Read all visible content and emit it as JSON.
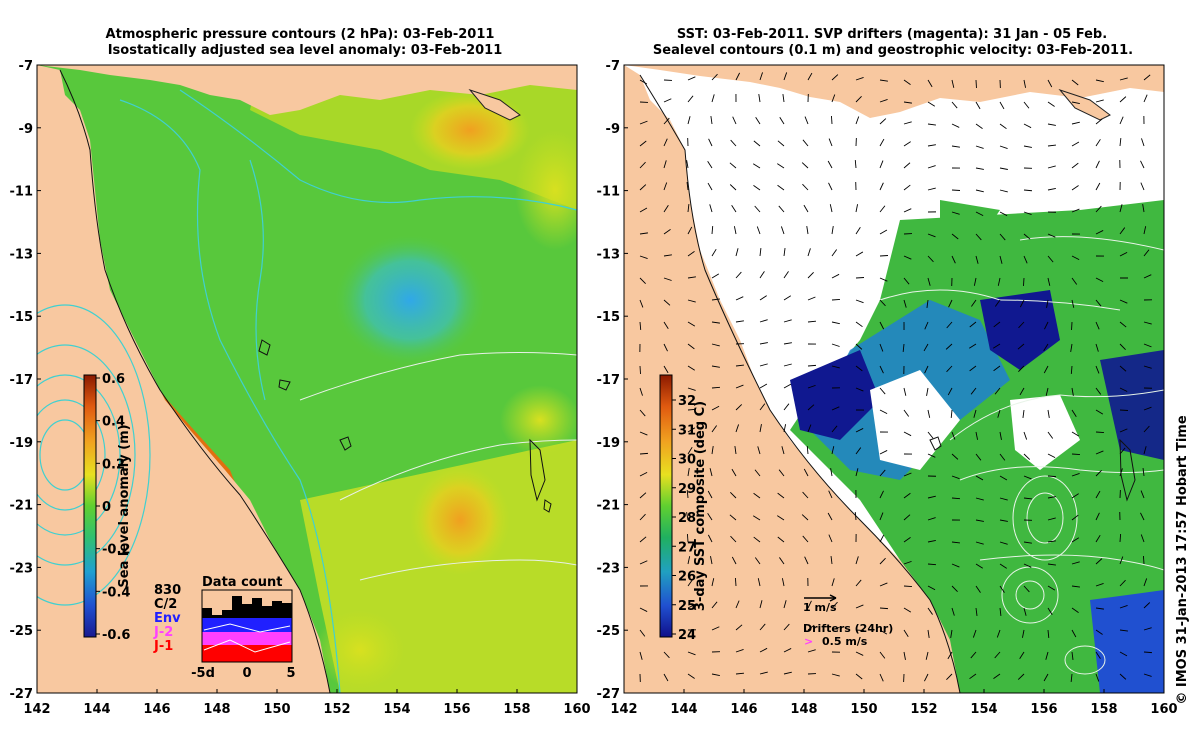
{
  "left_map": {
    "title_line1": "Atmospheric pressure contours (2 hPa): 03-Feb-2011",
    "title_line2": "Isostatically adjusted sea level anomaly: 03-Feb-2011",
    "x_ticks": [
      "142",
      "144",
      "146",
      "148",
      "150",
      "152",
      "154",
      "156",
      "158",
      "160"
    ],
    "y_ticks": [
      "-7",
      "-9",
      "-11",
      "-13",
      "-15",
      "-17",
      "-19",
      "-21",
      "-23",
      "-25",
      "-27"
    ],
    "colorbar": {
      "label": "Sea level anomaly (m)",
      "ticks": [
        "0.6",
        "0.4",
        "0.2",
        "0",
        "-0.2",
        "-0.4",
        "-0.6"
      ],
      "colors": [
        "#8b1a00",
        "#e05a10",
        "#f0a020",
        "#e8e020",
        "#60d030",
        "#30c070",
        "#20a0d0",
        "#2050d0",
        "#1a1a90"
      ]
    },
    "data_count": {
      "title": "Data count",
      "total": "830",
      "legend": [
        "C/2",
        "Env",
        "J-2",
        "J-1"
      ],
      "legend_colors": [
        "#000000",
        "#2020ff",
        "#ff40ff",
        "#ff0000"
      ],
      "x_ticks": [
        "-5d",
        "0",
        "5"
      ]
    }
  },
  "right_map": {
    "title_line1": "SST: 03-Feb-2011. SVP drifters (magenta): 31 Jan - 05 Feb.",
    "title_line2": "Sealevel contours (0.1 m) and geostrophic velocity: 03-Feb-2011.",
    "x_ticks": [
      "142",
      "144",
      "146",
      "148",
      "150",
      "152",
      "154",
      "156",
      "158",
      "160"
    ],
    "y_ticks": [
      "-7",
      "-9",
      "-11",
      "-13",
      "-15",
      "-17",
      "-19",
      "-21",
      "-23",
      "-25",
      "-27"
    ],
    "colorbar": {
      "label": "3-day SST composite (deg C)",
      "ticks": [
        "32",
        "31",
        "30",
        "29",
        "28",
        "27",
        "26",
        "25",
        "24"
      ],
      "colors": [
        "#8b1a00",
        "#e05a10",
        "#f0a020",
        "#e8e020",
        "#60d030",
        "#20b060",
        "#20a0c0",
        "#2050d0",
        "#10108a"
      ]
    },
    "velocity_scale": "1 m/s",
    "drifter_title": "Drifters (24hr)",
    "drifter_scale": "0.5 m/s"
  },
  "credit": "© IMOS 31-Jan-2013 17:57 Hobart Time",
  "colors": {
    "land": "#f8c8a0",
    "sea_green": "#58c83c",
    "sea_yellow": "#c8e020",
    "sea_cyan": "#40b8d8",
    "sst_white": "#ffffff",
    "sst_dark_blue": "#101890",
    "pressure_contour": "#40d0d0"
  }
}
